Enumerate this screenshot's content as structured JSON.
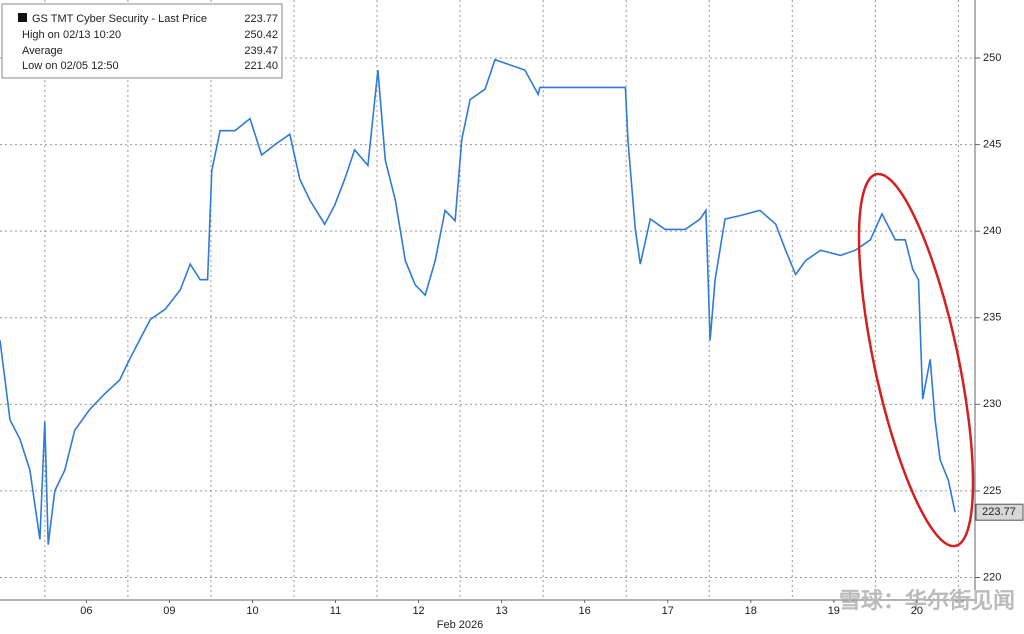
{
  "chart_data": {
    "type": "line",
    "x_label": "Feb 2026",
    "xlim": [
      -0.54,
      11.2
    ],
    "xticks": [
      {
        "value": 0.5,
        "label": "06"
      },
      {
        "value": 1.5,
        "label": "09"
      },
      {
        "value": 2.5,
        "label": "10"
      },
      {
        "value": 3.5,
        "label": "11"
      },
      {
        "value": 4.5,
        "label": "12"
      },
      {
        "value": 5.5,
        "label": "13"
      },
      {
        "value": 6.5,
        "label": "16"
      },
      {
        "value": 7.5,
        "label": "17"
      },
      {
        "value": 8.5,
        "label": "18"
      },
      {
        "value": 9.5,
        "label": "19"
      },
      {
        "value": 10.5,
        "label": "20"
      }
    ],
    "ylim": [
      218.7,
      253.35
    ],
    "yticks": [
      220,
      225,
      230,
      235,
      240,
      245,
      250
    ],
    "grid": true,
    "legend": {
      "title": "GS TMT Cyber Security - Last Price",
      "last_price": 223.77,
      "items": [
        {
          "label": "High on 02/13 10:20",
          "value": 250.42
        },
        {
          "label": "Average",
          "value": 239.47
        },
        {
          "label": "Low on 02/05 12:50",
          "value": 221.4
        }
      ]
    },
    "watermark": "雪球：华尔街见闻",
    "series": [
      {
        "name": "GS TMT Cyber Security",
        "color": "#2f7bd6",
        "x": [
          -0.54,
          -0.42,
          -0.3,
          -0.18,
          -0.06,
          0.0,
          0.04,
          0.12,
          0.24,
          0.36,
          0.54,
          0.72,
          0.9,
          1.02,
          1.14,
          1.27,
          1.45,
          1.63,
          1.75,
          1.87,
          1.96,
          2.01,
          2.11,
          2.29,
          2.47,
          2.61,
          2.77,
          2.95,
          3.07,
          3.19,
          3.37,
          3.49,
          3.61,
          3.73,
          3.89,
          4.01,
          4.1,
          4.22,
          4.34,
          4.46,
          4.58,
          4.7,
          4.82,
          4.94,
          5.02,
          5.12,
          5.3,
          5.42,
          5.6,
          5.78,
          5.94,
          5.96,
          6.99,
          7.02,
          7.11,
          7.17,
          7.29,
          7.47,
          7.71,
          7.89,
          7.96,
          8.01,
          8.07,
          8.19,
          8.37,
          8.61,
          8.8,
          8.92,
          9.04,
          9.16,
          9.34,
          9.58,
          9.76,
          9.94,
          10.08,
          10.24,
          10.36,
          10.45,
          10.52,
          10.57,
          10.66,
          10.72,
          10.78,
          10.88,
          10.96
        ],
        "values": [
          233.7,
          229.1,
          228.0,
          226.2,
          222.2,
          229.0,
          221.9,
          225.0,
          226.2,
          228.5,
          229.7,
          230.6,
          231.4,
          232.6,
          233.7,
          234.9,
          235.5,
          236.6,
          238.1,
          237.2,
          237.2,
          243.5,
          245.8,
          245.8,
          246.5,
          244.4,
          245.0,
          245.6,
          243.0,
          241.8,
          240.4,
          241.5,
          243.0,
          244.7,
          243.8,
          249.3,
          244.1,
          241.8,
          238.3,
          236.9,
          236.3,
          238.3,
          241.2,
          240.6,
          245.3,
          247.6,
          248.2,
          249.9,
          249.6,
          249.3,
          247.9,
          248.3,
          248.3,
          245.3,
          240.1,
          238.1,
          240.7,
          240.1,
          240.1,
          240.7,
          241.2,
          233.7,
          237.2,
          240.7,
          240.9,
          241.2,
          240.4,
          238.9,
          237.5,
          238.3,
          238.9,
          238.6,
          238.9,
          239.5,
          241.0,
          239.5,
          239.5,
          237.8,
          237.2,
          230.3,
          232.6,
          229.1,
          226.8,
          225.6,
          223.77
        ]
      }
    ]
  }
}
